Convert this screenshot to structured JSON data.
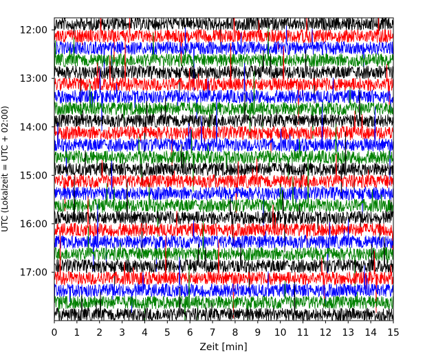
{
  "chart_data": {
    "type": "line",
    "title": "",
    "xlabel": "Zeit  [min]",
    "ylabel": "UTC (Lokalzeit = UTC + 02:00)",
    "xlim": [
      0,
      15
    ],
    "x_ticks": [
      "0",
      "1",
      "2",
      "3",
      "4",
      "5",
      "6",
      "7",
      "8",
      "9",
      "10",
      "11",
      "12",
      "13",
      "14",
      "15"
    ],
    "y_ticks": [
      "12:00",
      "13:00",
      "14:00",
      "15:00",
      "16:00",
      "17:00"
    ],
    "y_start": "11:45",
    "y_end": "18:00",
    "trace_interval_min": 15,
    "trace_count": 25,
    "trace_colors": [
      "#000000",
      "#ff0000",
      "#0000ff",
      "#008000"
    ],
    "grid": false,
    "legend": "none"
  }
}
